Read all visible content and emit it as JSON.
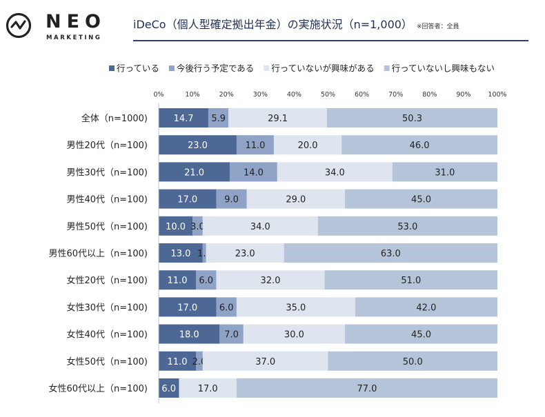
{
  "logo": {
    "icon": "neo-check-circle-icon",
    "word": "NEO",
    "sub": "MARKETING"
  },
  "title": {
    "main": "iDeCo（個人型確定拠出年金）の実施状況（n=1,000）",
    "note": "※回答者：全員"
  },
  "chart_data": {
    "type": "bar",
    "orientation": "horizontal",
    "stacked": true,
    "percent": true,
    "xlim": [
      0,
      100
    ],
    "xticks": [
      "0%",
      "10%",
      "20%",
      "30%",
      "40%",
      "50%",
      "60%",
      "70%",
      "80%",
      "90%",
      "100%"
    ],
    "legend_position": "top",
    "categories": [
      "全体（n=1000)",
      "男性20代（n=100)",
      "男性30代（n=100)",
      "男性40代（n=100)",
      "男性50代（n=100)",
      "男性60代以上（n=100)",
      "女性20代（n=100)",
      "女性30代（n=100)",
      "女性40代（n=100)",
      "女性50代（n=100)",
      "女性60代以上（n=100)"
    ],
    "series": [
      {
        "name": "行っている",
        "color": "#4e6896",
        "label_color": "#ffffff",
        "values": [
          14.7,
          23.0,
          21.0,
          17.0,
          10.0,
          13.0,
          11.0,
          17.0,
          18.0,
          11.0,
          6.0
        ],
        "labels": [
          "14.7",
          "23.0",
          "21.0",
          "17.0",
          "10.0",
          "13.0",
          "11.0",
          "17.0",
          "18.0",
          "11.0",
          "6.0"
        ]
      },
      {
        "name": "今後行う予定である",
        "color": "#8ea3c6",
        "label_color": "#222222",
        "values": [
          5.9,
          11.0,
          14.0,
          9.0,
          3.0,
          1.0,
          6.0,
          6.0,
          7.0,
          2.0,
          0.0
        ],
        "labels": [
          "5.9",
          "11.0",
          "14.0",
          "9.0",
          "3.0",
          "1.0",
          "6.0",
          "6.0",
          "7.0",
          "2.0",
          ""
        ]
      },
      {
        "name": "行っていないが興味がある",
        "color": "#dfe5ef",
        "label_color": "#222222",
        "values": [
          29.1,
          20.0,
          34.0,
          29.0,
          34.0,
          23.0,
          32.0,
          35.0,
          30.0,
          37.0,
          17.0
        ],
        "labels": [
          "29.1",
          "20.0",
          "34.0",
          "29.0",
          "34.0",
          "23.0",
          "32.0",
          "35.0",
          "30.0",
          "37.0",
          "17.0"
        ]
      },
      {
        "name": "行っていないし興味もない",
        "color": "#b6c4da",
        "label_color": "#222222",
        "values": [
          50.3,
          46.0,
          31.0,
          45.0,
          53.0,
          63.0,
          51.0,
          42.0,
          45.0,
          50.0,
          77.0
        ],
        "labels": [
          "50.3",
          "46.0",
          "31.0",
          "45.0",
          "53.0",
          "63.0",
          "51.0",
          "42.0",
          "45.0",
          "50.0",
          "77.0"
        ]
      }
    ]
  }
}
